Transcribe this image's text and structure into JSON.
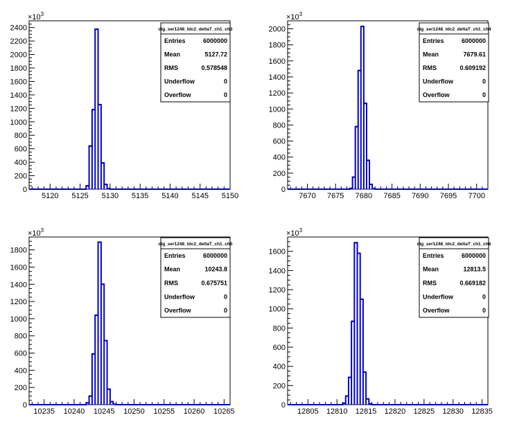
{
  "colors": {
    "histogram_line": "#0000cc",
    "frame": "#000000",
    "background": "#ffffff"
  },
  "chart_data": [
    {
      "type": "histogram",
      "title": "dig_ser1248_tdc2_deltaT_ch1_ch3",
      "exponent_label": "10",
      "exponent_power": "3",
      "xlim": [
        5116.5,
        5150
      ],
      "ylim": [
        0,
        2500
      ],
      "xticks": [
        "5120",
        "5125",
        "5130",
        "5135",
        "5140",
        "5145",
        "5150"
      ],
      "yticks": [
        "0",
        "200",
        "400",
        "600",
        "800",
        "1000",
        "1200",
        "1400",
        "1600",
        "1800",
        "2000",
        "2200",
        "2400"
      ],
      "bin_width": 0.5,
      "bins": [
        {
          "x": 5126.0,
          "y": 50
        },
        {
          "x": 5126.5,
          "y": 640
        },
        {
          "x": 5127.0,
          "y": 1180
        },
        {
          "x": 5127.5,
          "y": 2375
        },
        {
          "x": 5128.0,
          "y": 1255
        },
        {
          "x": 5128.5,
          "y": 390
        },
        {
          "x": 5129.0,
          "y": 70
        },
        {
          "x": 5129.5,
          "y": 8
        }
      ],
      "stats": [
        {
          "label": "Entries",
          "value": "6000000"
        },
        {
          "label": "Mean",
          "value": "5127.72"
        },
        {
          "label": "RMS",
          "value": "0.578548"
        },
        {
          "label": "Underflow",
          "value": "0"
        },
        {
          "label": "Overflow",
          "value": "0"
        }
      ]
    },
    {
      "type": "histogram",
      "title": "dig_ser1248_tdc2_deltaT_ch1_ch4",
      "exponent_label": "10",
      "exponent_power": "3",
      "xlim": [
        7666.5,
        7702
      ],
      "ylim": [
        0,
        2100
      ],
      "xticks": [
        "7670",
        "7675",
        "7680",
        "7685",
        "7690",
        "7695",
        "7700"
      ],
      "yticks": [
        "0",
        "200",
        "400",
        "600",
        "800",
        "1000",
        "1200",
        "1400",
        "1600",
        "1800",
        "2000"
      ],
      "bin_width": 0.5,
      "bins": [
        {
          "x": 7677.5,
          "y": 10
        },
        {
          "x": 7678.0,
          "y": 150
        },
        {
          "x": 7678.5,
          "y": 780
        },
        {
          "x": 7679.0,
          "y": 1480
        },
        {
          "x": 7679.5,
          "y": 2030
        },
        {
          "x": 7680.0,
          "y": 1070
        },
        {
          "x": 7680.5,
          "y": 360
        },
        {
          "x": 7681.0,
          "y": 60
        },
        {
          "x": 7681.5,
          "y": 8
        }
      ],
      "stats": [
        {
          "label": "Entries",
          "value": "6000000"
        },
        {
          "label": "Mean",
          "value": "7679.61"
        },
        {
          "label": "RMS",
          "value": "0.609192"
        },
        {
          "label": "Underflow",
          "value": "0"
        },
        {
          "label": "Overflow",
          "value": "0"
        }
      ]
    },
    {
      "type": "histogram",
      "title": "dig_ser1248_tdc2_deltaT_ch1_ch5",
      "exponent_label": "10",
      "exponent_power": "3",
      "xlim": [
        10232.5,
        10266
      ],
      "ylim": [
        0,
        1950
      ],
      "xticks": [
        "10235",
        "10240",
        "10245",
        "10250",
        "10255",
        "10260",
        "10265"
      ],
      "yticks": [
        "0",
        "200",
        "400",
        "600",
        "800",
        "1000",
        "1200",
        "1400",
        "1600",
        "1800"
      ],
      "bin_width": 0.5,
      "bins": [
        {
          "x": 10242.0,
          "y": 20
        },
        {
          "x": 10242.5,
          "y": 100
        },
        {
          "x": 10243.0,
          "y": 590
        },
        {
          "x": 10243.5,
          "y": 1040
        },
        {
          "x": 10244.0,
          "y": 1890
        },
        {
          "x": 10244.5,
          "y": 1400
        },
        {
          "x": 10245.0,
          "y": 745
        },
        {
          "x": 10245.5,
          "y": 180
        },
        {
          "x": 10246.0,
          "y": 35
        },
        {
          "x": 10246.5,
          "y": 5
        }
      ],
      "stats": [
        {
          "label": "Entries",
          "value": "6000000"
        },
        {
          "label": "Mean",
          "value": "10243.8"
        },
        {
          "label": "RMS",
          "value": "0.675751"
        },
        {
          "label": "Underflow",
          "value": "0"
        },
        {
          "label": "Overflow",
          "value": "0"
        }
      ]
    },
    {
      "type": "histogram",
      "title": "dig_ser1248_tdc2_deltaT_ch1_ch6",
      "exponent_label": "10",
      "exponent_power": "3",
      "xlim": [
        12801.5,
        12836
      ],
      "ylim": [
        0,
        1750
      ],
      "xticks": [
        "12805",
        "12810",
        "12815",
        "12820",
        "12825",
        "12830",
        "12835"
      ],
      "yticks": [
        "0",
        "200",
        "400",
        "600",
        "800",
        "1000",
        "1200",
        "1400",
        "1600"
      ],
      "bin_width": 0.5,
      "bins": [
        {
          "x": 12811.0,
          "y": 15
        },
        {
          "x": 12811.5,
          "y": 90
        },
        {
          "x": 12812.0,
          "y": 285
        },
        {
          "x": 12812.5,
          "y": 870
        },
        {
          "x": 12813.0,
          "y": 1690
        },
        {
          "x": 12813.5,
          "y": 1580
        },
        {
          "x": 12814.0,
          "y": 1100
        },
        {
          "x": 12814.5,
          "y": 340
        },
        {
          "x": 12815.0,
          "y": 60
        },
        {
          "x": 12815.5,
          "y": 8
        }
      ],
      "stats": [
        {
          "label": "Entries",
          "value": "6000000"
        },
        {
          "label": "Mean",
          "value": "12813.5"
        },
        {
          "label": "RMS",
          "value": "0.669182"
        },
        {
          "label": "Underflow",
          "value": "0"
        },
        {
          "label": "Overflow",
          "value": "0"
        }
      ]
    }
  ]
}
